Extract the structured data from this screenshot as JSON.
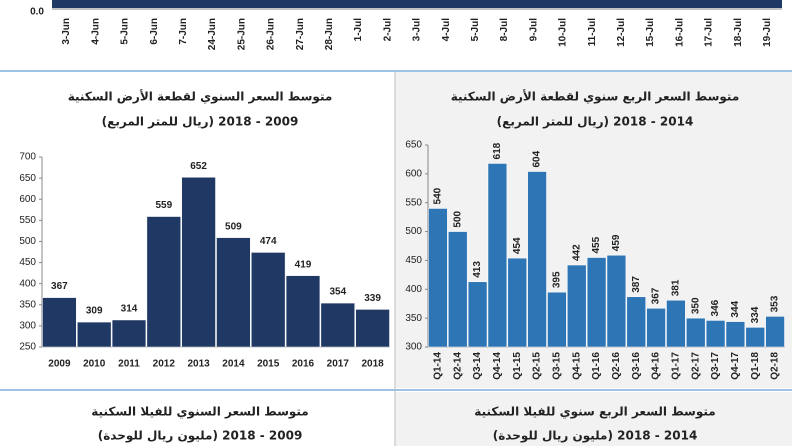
{
  "chart_data": [
    {
      "type": "bar",
      "color": "#1f3864",
      "categories": [
        "3-Jun",
        "4-Jun",
        "5-Jun",
        "6-Jun",
        "7-Jun",
        "24-Jun",
        "25-Jun",
        "26-Jun",
        "27-Jun",
        "28-Jun",
        "1-Jul",
        "2-Jul",
        "3-Jul",
        "4-Jul",
        "5-Jul",
        "8-Jul",
        "9-Jul",
        "10-Jul",
        "11-Jul",
        "12-Jul",
        "15-Jul",
        "16-Jul",
        "17-Jul",
        "18-Jul",
        "19-Jul"
      ],
      "yticks": [
        {
          "value": 0,
          "label": "0.0"
        }
      ]
    },
    {
      "type": "bar",
      "title": "متوسط السعر السنوي لقطعة الأرض السكنية",
      "subtitle": "(ريال للمتر المربع) 2009 - 2018",
      "color": "#1f3864",
      "categories": [
        "2009",
        "2010",
        "2011",
        "2012",
        "2013",
        "2014",
        "2015",
        "2016",
        "2017",
        "2018"
      ],
      "values": [
        367,
        309,
        314,
        559,
        652,
        509,
        474,
        419,
        354,
        339
      ],
      "ylim": [
        250,
        700
      ],
      "yticks": [
        250,
        300,
        350,
        400,
        450,
        500,
        550,
        600,
        650,
        700
      ]
    },
    {
      "type": "bar",
      "title": "متوسط السعر الربع سنوي لقطعة الأرض السكنية",
      "subtitle": "(ريال للمتر المربع) 2014 - 2018",
      "color": "#2e75b6",
      "categories": [
        "Q1-14",
        "Q2-14",
        "Q3-14",
        "Q4-14",
        "Q1-15",
        "Q2-15",
        "Q3-15",
        "Q4-15",
        "Q1-16",
        "Q2-16",
        "Q3-16",
        "Q4-16",
        "Q1-17",
        "Q2-17",
        "Q3-17",
        "Q4-17",
        "Q1-18",
        "Q2-18"
      ],
      "values": [
        540,
        500,
        413,
        618,
        454,
        604,
        395,
        442,
        455,
        459,
        387,
        367,
        381,
        350,
        346,
        344,
        334,
        353
      ],
      "ylim": [
        300,
        650
      ],
      "yticks": [
        300,
        350,
        400,
        450,
        500,
        550,
        600,
        650
      ]
    },
    {
      "type": "bar",
      "title": "متوسط السعر السنوي للفيلا السكنية",
      "subtitle": "(مليون ريال للوحدة) 2009 - 2018"
    },
    {
      "type": "bar",
      "title": "متوسط السعر الربع سنوي للفيلا السكنية",
      "subtitle": "(مليون ريال للوحدة) 2014 - 2018"
    }
  ]
}
